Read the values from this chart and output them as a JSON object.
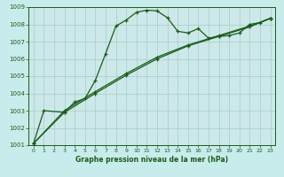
{
  "bg_color": "#c8ecec",
  "plot_bg_color": "#cce8e8",
  "line_color": "#1a5c1a",
  "grid_color": "#a8cccc",
  "xlim": [
    -0.5,
    23.5
  ],
  "ylim": [
    1001,
    1009
  ],
  "xlabel": "Graphe pression niveau de la mer (hPa)",
  "xticks": [
    0,
    1,
    2,
    3,
    4,
    5,
    6,
    7,
    8,
    9,
    10,
    11,
    12,
    13,
    14,
    15,
    16,
    17,
    18,
    19,
    20,
    21,
    22,
    23
  ],
  "yticks": [
    1001,
    1002,
    1003,
    1004,
    1005,
    1006,
    1007,
    1008,
    1009
  ],
  "line1_x": [
    0,
    1,
    3,
    4,
    5,
    6,
    7,
    8,
    9,
    10,
    11,
    12,
    13,
    14,
    15,
    16,
    17,
    18,
    19,
    20,
    21,
    22,
    23
  ],
  "line1_y": [
    1001.1,
    1003.0,
    1002.9,
    1003.5,
    1003.7,
    1004.75,
    1006.3,
    1007.9,
    1008.25,
    1008.7,
    1008.82,
    1008.78,
    1008.38,
    1007.6,
    1007.5,
    1007.75,
    1007.2,
    1007.3,
    1007.35,
    1007.5,
    1008.0,
    1008.1,
    1008.35
  ],
  "line2_x": [
    0,
    3,
    6,
    9,
    12,
    15,
    18,
    21,
    23
  ],
  "line2_y": [
    1001.1,
    1003.0,
    1004.1,
    1005.15,
    1006.1,
    1006.8,
    1007.35,
    1007.9,
    1008.35
  ],
  "line3_x": [
    0,
    3,
    6,
    9,
    12,
    15,
    18,
    21,
    23
  ],
  "line3_y": [
    1001.1,
    1002.9,
    1004.0,
    1005.05,
    1006.0,
    1006.75,
    1007.3,
    1007.85,
    1008.35
  ]
}
